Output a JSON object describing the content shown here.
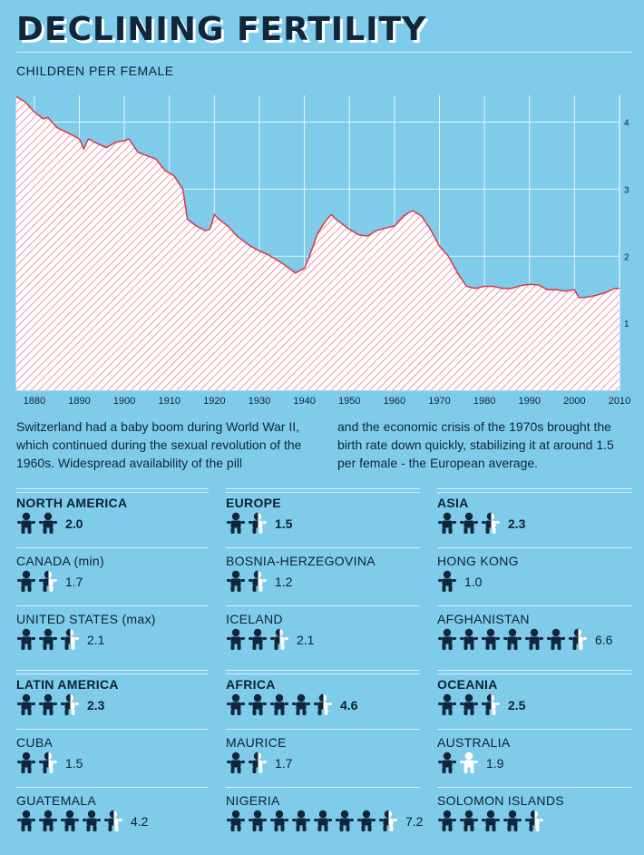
{
  "header": {
    "title": "DECLINING FERTILITY",
    "subtitle": "CHILDREN PER FEMALE"
  },
  "colors": {
    "background": "#7ecbea",
    "dark": "#10263a",
    "line": "#d9364d",
    "hatch": "#e87a88",
    "fill": "#ffffff"
  },
  "chart_data": {
    "type": "area",
    "title": "DECLINING FERTILITY",
    "ylabel": "CHILDREN PER FEMALE",
    "xlim": [
      1876,
      2010
    ],
    "ylim": [
      0,
      4.4
    ],
    "x_ticks": [
      1880,
      1890,
      1900,
      1910,
      1920,
      1930,
      1940,
      1950,
      1960,
      1970,
      1980,
      1990,
      2000,
      2010
    ],
    "y_ticks": [
      1,
      2,
      3,
      4
    ],
    "grid": true,
    "points": [
      [
        1876,
        4.38
      ],
      [
        1878,
        4.3
      ],
      [
        1880,
        4.15
      ],
      [
        1882,
        4.05
      ],
      [
        1883,
        4.07
      ],
      [
        1885,
        3.92
      ],
      [
        1888,
        3.82
      ],
      [
        1890,
        3.75
      ],
      [
        1891,
        3.6
      ],
      [
        1892,
        3.75
      ],
      [
        1894,
        3.68
      ],
      [
        1896,
        3.62
      ],
      [
        1898,
        3.7
      ],
      [
        1900,
        3.72
      ],
      [
        1901,
        3.75
      ],
      [
        1903,
        3.55
      ],
      [
        1905,
        3.5
      ],
      [
        1907,
        3.45
      ],
      [
        1909,
        3.28
      ],
      [
        1911,
        3.2
      ],
      [
        1913,
        3.0
      ],
      [
        1914,
        2.55
      ],
      [
        1916,
        2.45
      ],
      [
        1918,
        2.38
      ],
      [
        1919,
        2.4
      ],
      [
        1920,
        2.62
      ],
      [
        1921,
        2.55
      ],
      [
        1923,
        2.45
      ],
      [
        1925,
        2.3
      ],
      [
        1928,
        2.15
      ],
      [
        1930,
        2.08
      ],
      [
        1932,
        2.02
      ],
      [
        1935,
        1.9
      ],
      [
        1937,
        1.8
      ],
      [
        1938,
        1.75
      ],
      [
        1940,
        1.82
      ],
      [
        1941,
        1.98
      ],
      [
        1943,
        2.35
      ],
      [
        1945,
        2.55
      ],
      [
        1946,
        2.62
      ],
      [
        1947,
        2.55
      ],
      [
        1949,
        2.45
      ],
      [
        1950,
        2.4
      ],
      [
        1952,
        2.32
      ],
      [
        1954,
        2.3
      ],
      [
        1956,
        2.38
      ],
      [
        1958,
        2.42
      ],
      [
        1960,
        2.45
      ],
      [
        1962,
        2.6
      ],
      [
        1964,
        2.68
      ],
      [
        1966,
        2.6
      ],
      [
        1968,
        2.4
      ],
      [
        1970,
        2.15
      ],
      [
        1972,
        2.0
      ],
      [
        1974,
        1.75
      ],
      [
        1976,
        1.55
      ],
      [
        1978,
        1.52
      ],
      [
        1980,
        1.55
      ],
      [
        1982,
        1.55
      ],
      [
        1984,
        1.52
      ],
      [
        1986,
        1.52
      ],
      [
        1988,
        1.56
      ],
      [
        1990,
        1.58
      ],
      [
        1992,
        1.57
      ],
      [
        1994,
        1.5
      ],
      [
        1996,
        1.5
      ],
      [
        1998,
        1.48
      ],
      [
        2000,
        1.5
      ],
      [
        2001,
        1.38
      ],
      [
        2003,
        1.39
      ],
      [
        2005,
        1.42
      ],
      [
        2007,
        1.46
      ],
      [
        2009,
        1.52
      ],
      [
        2010,
        1.52
      ]
    ]
  },
  "text": {
    "para1": "Switzerland had a baby boom during World War II, which continued during the sexual revolution of the 1960s. Widespread availability of the pill",
    "para2": "and the economic crisis of the 1970s brought the birth rate down quickly, stabilizing it at around 1.5 per female - the European average."
  },
  "regions": [
    {
      "name": "NORTH AMERICA",
      "value": "2.0",
      "region": true
    },
    {
      "name": "EUROPE",
      "value": "1.5",
      "region": true
    },
    {
      "name": "ASIA",
      "value": "2.3",
      "region": true
    },
    {
      "name": "CANADA  (min)",
      "value": "1.7",
      "region": false
    },
    {
      "name": "BOSNIA-HERZEGOVINA",
      "value": "1.2",
      "region": false
    },
    {
      "name": "HONG KONG",
      "value": "1.0",
      "region": false
    },
    {
      "name": "UNITED STATES (max)",
      "value": "2.1",
      "region": false
    },
    {
      "name": "ICELAND",
      "value": "2.1",
      "region": false
    },
    {
      "name": "AFGHANISTAN",
      "value": "6.6",
      "region": false
    },
    {
      "name": "LATIN AMERICA",
      "value": "2.3",
      "region": true
    },
    {
      "name": "AFRICA",
      "value": "4.6",
      "region": true
    },
    {
      "name": "OCEANIA",
      "value": "2.5",
      "region": true
    },
    {
      "name": "CUBA",
      "value": "1.5",
      "region": false
    },
    {
      "name": "MAURICE",
      "value": "1.7",
      "region": false
    },
    {
      "name": "AUSTRALIA",
      "value": "1.9",
      "region": false
    },
    {
      "name": "GUATEMALA",
      "value": "4.2",
      "region": false
    },
    {
      "name": "NIGERIA",
      "value": "7.2",
      "region": false
    },
    {
      "name": "SOLOMON ISLANDS",
      "value": "",
      "region": false
    }
  ]
}
